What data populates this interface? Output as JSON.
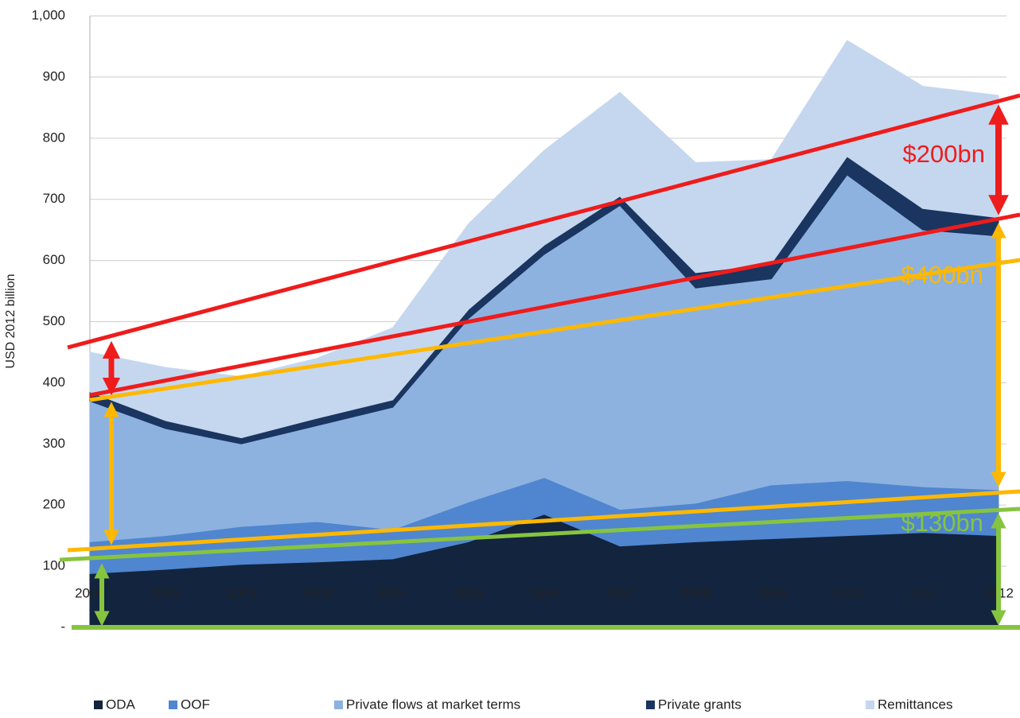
{
  "chart_data": {
    "type": "stacked_area",
    "y_label": "USD 2012 billion",
    "categories": [
      "2000",
      "2001",
      "2002",
      "2003",
      "2004",
      "2005",
      "2006",
      "2007",
      "2008",
      "2009",
      "2010",
      "2011",
      "2012"
    ],
    "series": [
      {
        "name": "ODA",
        "color": "#13243f",
        "values": [
          88,
          95,
          103,
          107,
          112,
          140,
          185,
          133,
          140,
          145,
          150,
          155,
          150
        ]
      },
      {
        "name": "OOF",
        "color": "#4f86cf",
        "values": [
          52,
          55,
          62,
          66,
          48,
          65,
          60,
          60,
          63,
          88,
          90,
          75,
          75
        ]
      },
      {
        "name": "Private flows at market terms",
        "color": "#8db2e0",
        "values": [
          230,
          175,
          135,
          157,
          200,
          300,
          365,
          497,
          352,
          337,
          500,
          420,
          415
        ]
      },
      {
        "name": "Private grants",
        "color": "#1a3560",
        "values": [
          15,
          13,
          10,
          12,
          12,
          15,
          15,
          15,
          25,
          25,
          30,
          35,
          30
        ]
      },
      {
        "name": "Remittances",
        "color": "#c5d7ee",
        "values": [
          65,
          87,
          100,
          98,
          118,
          140,
          155,
          170,
          180,
          170,
          190,
          200,
          200
        ]
      }
    ],
    "ylim": [
      0,
      1000
    ],
    "yticks": [
      {
        "value": 0,
        "label": "-"
      },
      100,
      200,
      300,
      400,
      500,
      600,
      700,
      800,
      900,
      {
        "value": 1000,
        "label": "1,000"
      }
    ],
    "grid": true,
    "annotations": [
      "$200bn",
      "$400bn",
      "$130bn"
    ]
  }
}
